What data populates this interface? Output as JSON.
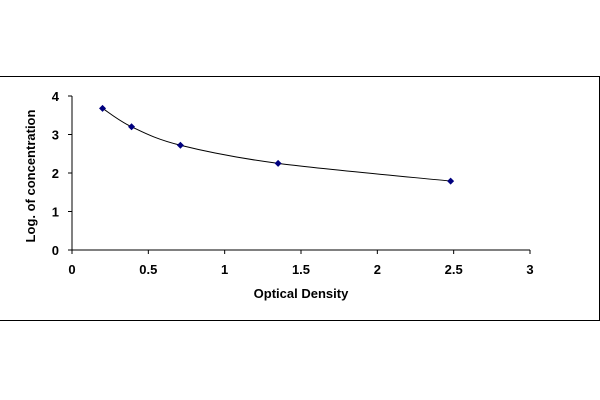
{
  "chart_data": {
    "type": "scatter",
    "title": "",
    "xlabel": "Optical Density",
    "ylabel": "Log. of concentration",
    "xlim": [
      0,
      3
    ],
    "ylim": [
      0,
      4
    ],
    "x_ticks": [
      "0",
      "0.5",
      "1",
      "1.5",
      "2",
      "2.5",
      "3"
    ],
    "y_ticks": [
      "0",
      "1",
      "2",
      "3",
      "4"
    ],
    "grid": false,
    "legend": "none",
    "marker_color": "#00007f",
    "line_color": "#000000",
    "series": [
      {
        "x": [
          0.2,
          0.39,
          0.71,
          1.35,
          2.48
        ],
        "y": [
          3.68,
          3.2,
          2.72,
          2.25,
          1.79
        ],
        "fit": "smooth-curve"
      }
    ]
  }
}
